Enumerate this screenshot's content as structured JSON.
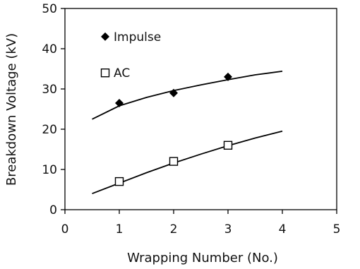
{
  "chart_data": {
    "type": "scatter",
    "title": "",
    "xlabel": "Wrapping Number (No.)",
    "ylabel": "Breakdown Voltage (kV)",
    "xlim": [
      0,
      5
    ],
    "ylim": [
      0,
      50
    ],
    "x_ticks": [
      "0",
      "1",
      "2",
      "3",
      "4",
      "5"
    ],
    "y_ticks": [
      "0",
      "10",
      "20",
      "30",
      "40",
      "50"
    ],
    "grid": false,
    "legend_position": "top-left",
    "series": [
      {
        "name": "Impulse",
        "marker": "filled-diamond",
        "color": "#000000",
        "points": [
          {
            "x": 1,
            "y": 26.5
          },
          {
            "x": 2,
            "y": 29
          },
          {
            "x": 3,
            "y": 33
          }
        ],
        "trendline": {
          "type": "logarithmic",
          "x_range": [
            0.5,
            4
          ],
          "points": [
            {
              "x": 0.5,
              "y": 22.5
            },
            {
              "x": 1,
              "y": 25.8
            },
            {
              "x": 1.5,
              "y": 27.9
            },
            {
              "x": 2,
              "y": 29.6
            },
            {
              "x": 2.5,
              "y": 31.0
            },
            {
              "x": 3,
              "y": 32.3
            },
            {
              "x": 3.5,
              "y": 33.5
            },
            {
              "x": 4,
              "y": 34.4
            }
          ]
        }
      },
      {
        "name": "AC",
        "marker": "open-square",
        "color": "#000000",
        "points": [
          {
            "x": 1,
            "y": 7
          },
          {
            "x": 2,
            "y": 12
          },
          {
            "x": 3,
            "y": 16
          }
        ],
        "trendline": {
          "type": "polynomial",
          "x_range": [
            0.5,
            4
          ],
          "points": [
            {
              "x": 0.5,
              "y": 4
            },
            {
              "x": 1,
              "y": 6.6
            },
            {
              "x": 1.5,
              "y": 9.2
            },
            {
              "x": 2,
              "y": 11.6
            },
            {
              "x": 2.5,
              "y": 13.8
            },
            {
              "x": 3,
              "y": 15.9
            },
            {
              "x": 3.5,
              "y": 17.8
            },
            {
              "x": 4,
              "y": 19.5
            }
          ]
        }
      }
    ]
  }
}
